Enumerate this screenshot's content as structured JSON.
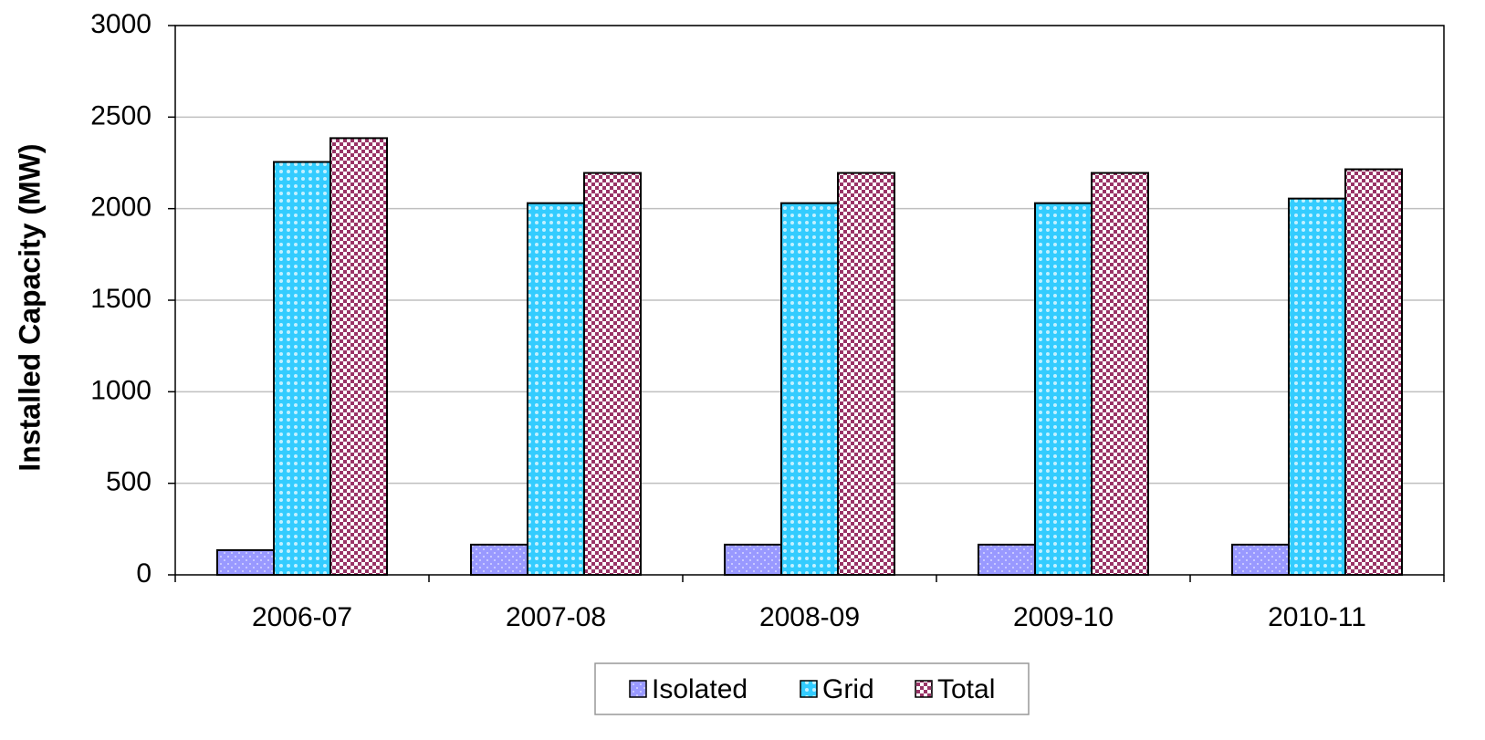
{
  "chart_data": {
    "type": "bar",
    "y_label": "Installed Capacity (MW)",
    "categories": [
      "2006-07",
      "2007-08",
      "2008-09",
      "2009-10",
      "2010-11"
    ],
    "series": [
      {
        "name": "Isolated",
        "color": "#9999ff",
        "values": [
          135,
          165,
          165,
          165,
          165
        ]
      },
      {
        "name": "Grid",
        "color": "#33ccff",
        "values": [
          2255,
          2030,
          2030,
          2030,
          2055
        ]
      },
      {
        "name": "Total",
        "color": "#993366",
        "values": [
          2385,
          2195,
          2195,
          2195,
          2215
        ]
      }
    ],
    "ylim": [
      0,
      3000
    ],
    "yticks": [
      0,
      500,
      1000,
      1500,
      2000,
      2500,
      3000
    ],
    "grid": true,
    "legend": "bottom"
  }
}
